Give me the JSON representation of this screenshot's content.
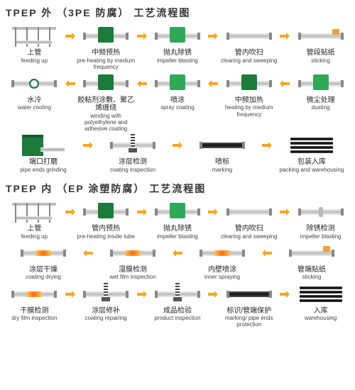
{
  "colors": {
    "arrow": "#f5a623",
    "green_dark": "#1d7a3a",
    "green_light": "#2fa85a",
    "orange": "#ff6a00"
  },
  "section1": {
    "title": "TPEP 外 （3PE 防腐） 工艺流程图",
    "rows": [
      [
        {
          "cn": "上管",
          "en": "feeding up",
          "icon": "rack"
        },
        {
          "cn": "中频预热",
          "en": "pre-heating by medium frequency",
          "icon": "pipe-gbox"
        },
        {
          "cn": "抛丸除锈",
          "en": "impeller blasting",
          "icon": "pipe-gbox-lt"
        },
        {
          "cn": "管内吹扫",
          "en": "clearing and sweeping",
          "icon": "pipe"
        },
        {
          "cn": "管段贴纸",
          "en": "sticking",
          "icon": "pipe-tag"
        }
      ],
      [
        {
          "cn": "水冷",
          "en": "water cooling",
          "icon": "pipe-ring"
        },
        {
          "cn": "胶粘剂涂敷、聚乙烯缠绕",
          "en": "winding with polyethylene and adhesive coating",
          "icon": "pipe-gbox"
        },
        {
          "cn": "喷涂",
          "en": "spray coating",
          "icon": "pipe-gbox-lt"
        },
        {
          "cn": "中频加热",
          "en": "heating by medium frequency",
          "icon": "pipe-gbox"
        },
        {
          "cn": "微尘处理",
          "en": "dusting",
          "icon": "pipe-gbox-lt"
        }
      ],
      [
        {
          "cn": "端口打磨",
          "en": "pipe ends grinding",
          "icon": "grinder"
        },
        {
          "cn": "涂层检测",
          "en": "coating inspection",
          "icon": "pipe-coil"
        },
        {
          "cn": "喷标",
          "en": "marking",
          "icon": "pipe-dark"
        },
        {
          "cn": "包装入库",
          "en": "packing and warehousing",
          "icon": "stack"
        }
      ]
    ],
    "directions": [
      "right",
      "left",
      "right"
    ]
  },
  "section2": {
    "title": "TPEP 内 （EP 涂塑防腐） 工艺流程图",
    "rows": [
      [
        {
          "cn": "上管",
          "en": "feeding up",
          "icon": "rack"
        },
        {
          "cn": "管内预热",
          "en": "pre-heating inside tube",
          "icon": "pipe-gbox"
        },
        {
          "cn": "抛丸除锈",
          "en": "impeller blasting",
          "icon": "pipe-gbox-lt"
        },
        {
          "cn": "管内吹扫",
          "en": "clearing and sweeping",
          "icon": "pipe"
        },
        {
          "cn": "除锈检测",
          "en": "impeller blasting",
          "icon": "pipe-dot"
        }
      ],
      [
        {
          "cn": "涂层干燥",
          "en": "coating drying",
          "icon": "pipe-orange"
        },
        {
          "cn": "湿膜检测",
          "en": "wet film inspection",
          "icon": "pipe-orange"
        },
        {
          "cn": "内壁喷涂",
          "en": "inner spraying",
          "icon": "pipe-orange"
        },
        {
          "cn": "管端贴纸",
          "en": "sticking",
          "icon": "pipe-tag"
        }
      ],
      [
        {
          "cn": "干膜检测",
          "en": "dry film inspection",
          "icon": "pipe-orange"
        },
        {
          "cn": "涂层修补",
          "en": "coating repairing",
          "icon": "pipe-coil"
        },
        {
          "cn": "成品检验",
          "en": "product inspection",
          "icon": "pipe-coil"
        },
        {
          "cn": "标识/管端保护",
          "en": "marking/ pipe ends protection",
          "icon": "pipe-dark"
        },
        {
          "cn": "入库",
          "en": "warehousing",
          "icon": "stack"
        }
      ]
    ],
    "directions": [
      "right",
      "left",
      "right"
    ]
  }
}
